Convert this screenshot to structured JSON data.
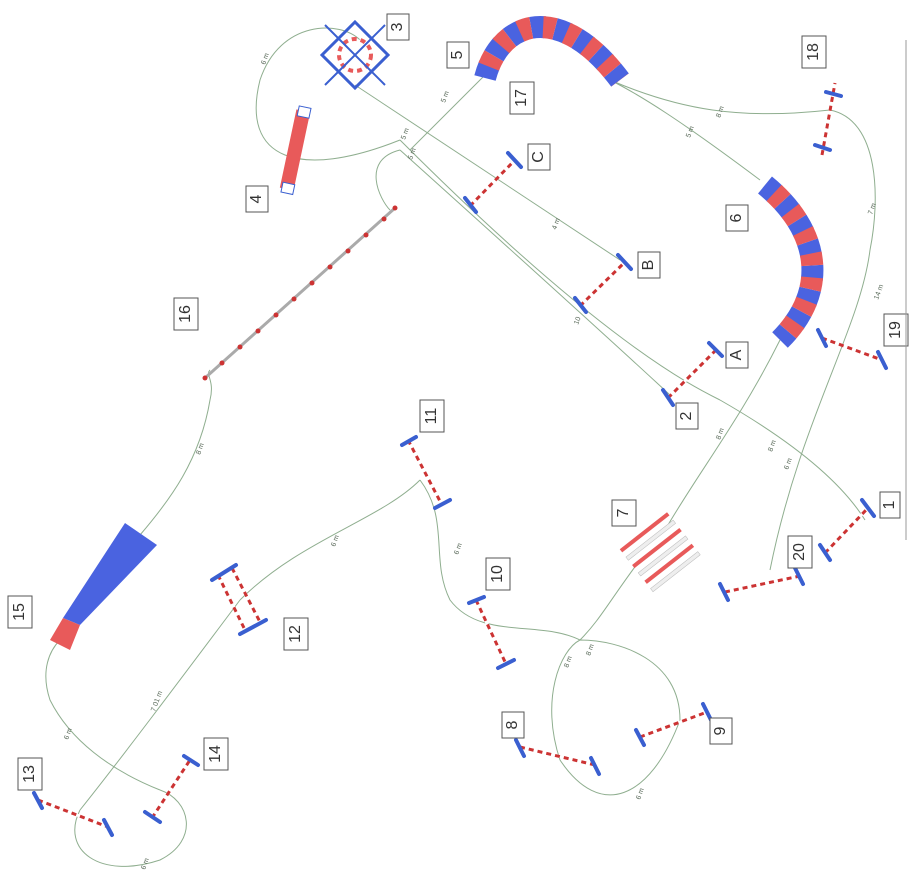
{
  "course": {
    "obstacle_labels": [
      "1",
      "2",
      "3",
      "4",
      "5",
      "6",
      "7",
      "8",
      "9",
      "10",
      "11",
      "12",
      "13",
      "14",
      "15",
      "16",
      "17",
      "18",
      "19",
      "20",
      "A",
      "B",
      "C"
    ],
    "distance_labels": [
      "8 m",
      "8 m",
      "8 m",
      "7 m",
      "14 m",
      "5 m",
      "6 m",
      "6 m",
      "6 m",
      "6 m",
      "6 m",
      "4 m",
      "10",
      "5 m",
      "5 m",
      "5 m",
      "6 m",
      "8 m",
      "8 m",
      "6 m",
      "6 m",
      "6 m",
      "8 m",
      "7 01 m",
      "6 m",
      "6 m",
      "5 m",
      "6 m"
    ],
    "colors": {
      "path": "#8fae8f",
      "pole_red": "#cc3333",
      "stand_blue": "#3a5fd0",
      "tunnel_blue": "#4a63e0",
      "tunnel_red": "#e85a5a"
    }
  }
}
